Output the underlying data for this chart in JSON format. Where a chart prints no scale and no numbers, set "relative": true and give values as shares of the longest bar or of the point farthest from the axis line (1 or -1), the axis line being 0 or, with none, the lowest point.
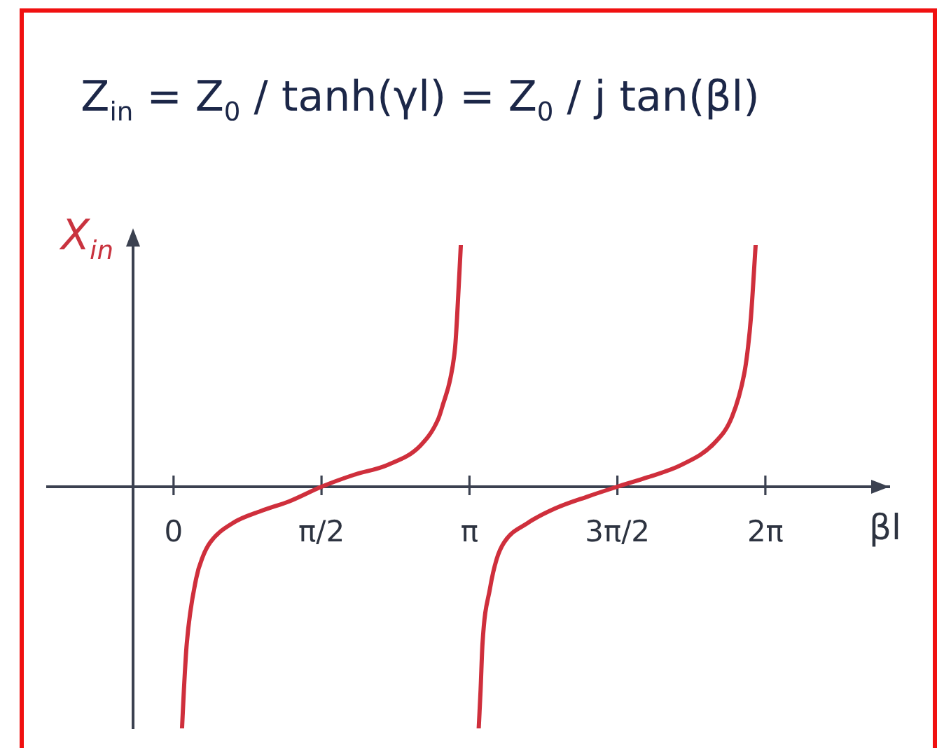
{
  "chart_data": {
    "type": "line",
    "title": "Z$_{in}$ = Z$_{0}$ / tanh(γl) = Z$_{0}$ / j tan(βl)",
    "xlabel": "βl",
    "ylabel": "X$_{in}$",
    "relative": true,
    "xlim": [
      -0.43,
      7.6
    ],
    "xticks": [
      0,
      {
        "value": 1.5708,
        "label": "π/2"
      },
      {
        "value": 3.1416,
        "label": "π"
      },
      {
        "value": 4.7124,
        "label": "3π/2"
      },
      {
        "value": 6.2832,
        "label": "2π"
      }
    ],
    "series": [
      {
        "color": "#cf2f3c",
        "x": [
          0.09,
          0.11,
          0.14,
          0.24,
          0.31,
          0.39,
          0.63,
          0.93,
          1.23,
          1.57,
          1.92,
          2.27,
          2.62,
          2.81,
          2.86,
          2.94,
          2.99,
          3.01,
          3.05
        ],
        "values": [
          -1,
          -0.84,
          -0.65,
          -0.38,
          -0.29,
          -0.23,
          -0.15,
          -0.1,
          -0.06,
          0,
          0.05,
          0.09,
          0.17,
          0.28,
          0.34,
          0.45,
          0.58,
          0.7,
          1
        ]
      },
      {
        "color": "#cf2f3c",
        "x": [
          3.24,
          3.26,
          3.28,
          3.36,
          3.43,
          3.51,
          3.76,
          4.05,
          4.4,
          4.71,
          5.04,
          5.39,
          5.74,
          5.93,
          6.06,
          6.1,
          6.13,
          6.18
        ],
        "values": [
          -1,
          -0.84,
          -0.65,
          -0.42,
          -0.3,
          -0.23,
          -0.15,
          -0.09,
          -0.04,
          0,
          0.04,
          0.09,
          0.18,
          0.29,
          0.47,
          0.58,
          0.7,
          1
        ]
      }
    ]
  }
}
